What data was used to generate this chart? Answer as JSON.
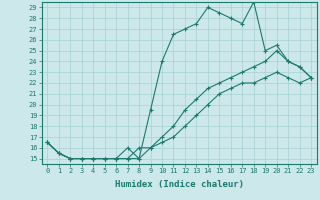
{
  "title": "",
  "xlabel": "Humidex (Indice chaleur)",
  "ylabel": "",
  "xlim": [
    -0.5,
    23.5
  ],
  "ylim": [
    14.5,
    29.5
  ],
  "xticks": [
    0,
    1,
    2,
    3,
    4,
    5,
    6,
    7,
    8,
    9,
    10,
    11,
    12,
    13,
    14,
    15,
    16,
    17,
    18,
    19,
    20,
    21,
    22,
    23
  ],
  "yticks": [
    15,
    16,
    17,
    18,
    19,
    20,
    21,
    22,
    23,
    24,
    25,
    26,
    27,
    28,
    29
  ],
  "line_color": "#1a7a6e",
  "bg_color": "#cce8ea",
  "grid_color": "#a8d0d4",
  "line1_y": [
    16.5,
    15.5,
    15.0,
    15.0,
    15.0,
    15.0,
    15.0,
    16.0,
    15.0,
    19.5,
    24.0,
    26.5,
    27.0,
    27.5,
    29.0,
    28.5,
    28.0,
    27.5,
    29.5,
    25.0,
    25.5,
    24.0,
    23.5,
    22.5
  ],
  "line2_y": [
    16.5,
    15.5,
    15.0,
    15.0,
    15.0,
    15.0,
    15.0,
    15.0,
    16.0,
    16.0,
    17.0,
    18.0,
    19.5,
    20.5,
    21.5,
    22.0,
    22.5,
    23.0,
    23.5,
    24.0,
    25.0,
    24.0,
    23.5,
    22.5
  ],
  "line3_y": [
    16.5,
    15.5,
    15.0,
    15.0,
    15.0,
    15.0,
    15.0,
    15.0,
    15.0,
    16.0,
    16.5,
    17.0,
    18.0,
    19.0,
    20.0,
    21.0,
    21.5,
    22.0,
    22.0,
    22.5,
    23.0,
    22.5,
    22.0,
    22.5
  ],
  "tick_fontsize": 5,
  "xlabel_fontsize": 6.5
}
